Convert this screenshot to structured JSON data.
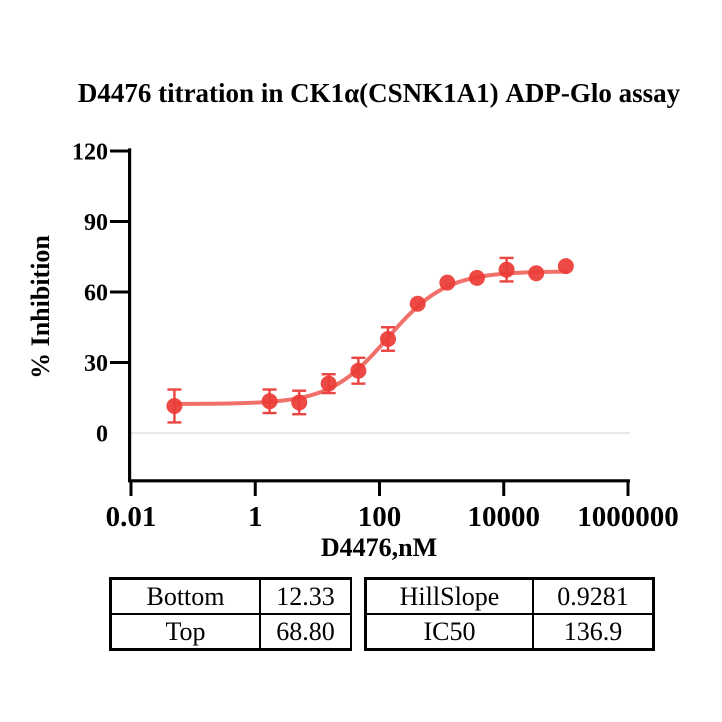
{
  "title": "D4476 titration in CK1α(CSNK1A1) ADP-Glo assay",
  "chart_data": {
    "type": "scatter",
    "title": "D4476 titration in CK1α(CSNK1A1) ADP-Glo assay",
    "xlabel": "D4476,nM",
    "ylabel": "% Inhibition",
    "x_scale": "log10",
    "xlim": [
      0.01,
      1000000
    ],
    "ylim": [
      0,
      120
    ],
    "xticks": [
      0.01,
      1,
      100,
      10000,
      1000000
    ],
    "xtick_labels": [
      "0.01",
      "1",
      "100",
      "10000",
      "1000000"
    ],
    "yticks": [
      0,
      30,
      60,
      90,
      120
    ],
    "ytick_labels": [
      "0",
      "30",
      "60",
      "90",
      "120"
    ],
    "grid": "single horizontal gridline at y=0",
    "gridline_y": 0,
    "legend": null,
    "points": {
      "x": [
        0.05,
        1.7,
        5.1,
        15.2,
        45.7,
        137,
        412,
        1235,
        3704,
        11111,
        33333,
        100000
      ],
      "y": [
        11.5,
        13.5,
        13,
        21,
        26.5,
        40,
        55,
        64,
        66,
        69.5,
        68,
        71
      ],
      "err": [
        7,
        5,
        5,
        4,
        5.5,
        5,
        0,
        0,
        0,
        5,
        0,
        0
      ]
    },
    "fit": {
      "model": "four-parameter logistic (dose-response)",
      "bottom": 12.33,
      "top": 68.8,
      "ic50": 136.9,
      "hillslope": 0.9281,
      "curve_x_range": [
        0.05,
        100000
      ]
    },
    "colors": {
      "marker": "#ec3c38",
      "curve": "#f1706a",
      "error_bar": "#ea4540",
      "axis": "#000000",
      "gridline": "#e2e2e2"
    }
  },
  "params_table": {
    "rows": [
      [
        "Bottom",
        "12.33",
        "HillSlope",
        "0.9281"
      ],
      [
        "Top",
        "68.80",
        "IC50",
        "136.9"
      ]
    ]
  }
}
